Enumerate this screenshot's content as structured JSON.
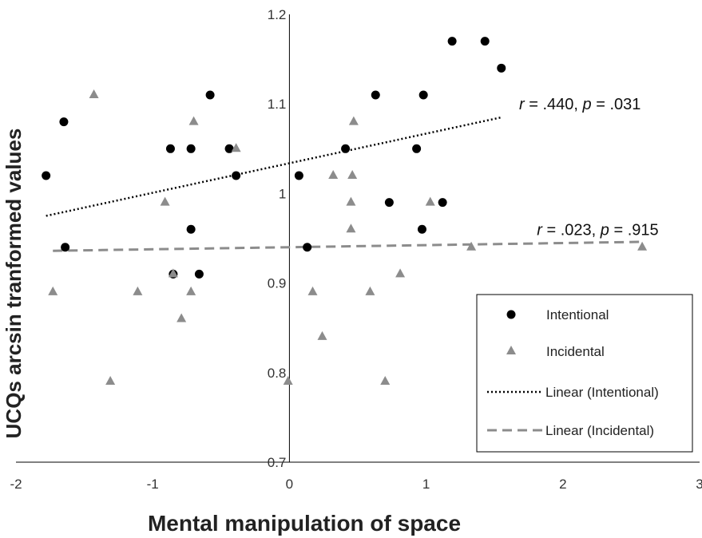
{
  "chart_data": {
    "type": "scatter",
    "xlabel": "Mental manipulation of space",
    "ylabel": "UCQs arcsin tranformed values",
    "xlim": [
      -2,
      3
    ],
    "ylim": [
      0.7,
      1.2
    ],
    "x_ticks": [
      -2,
      -1,
      0,
      1,
      2,
      3
    ],
    "y_ticks": [
      0.7,
      0.8,
      0.9,
      1,
      1.1,
      1.2
    ],
    "x_tick_labels": [
      "-2",
      "-1",
      "0",
      "1",
      "2",
      "3"
    ],
    "y_tick_labels": [
      "0.7",
      "0.8",
      "0.9",
      "1",
      "1.1",
      "1.2"
    ],
    "grid": false,
    "legend_position": "bottom-right",
    "series": [
      {
        "name": "Intentional",
        "marker": "circle",
        "color": "#000000",
        "points": [
          [
            -1.78,
            1.02
          ],
          [
            -1.65,
            1.08
          ],
          [
            -1.64,
            0.94
          ],
          [
            -0.87,
            1.05
          ],
          [
            -0.85,
            0.91
          ],
          [
            -0.72,
            1.05
          ],
          [
            -0.72,
            0.96
          ],
          [
            -0.66,
            0.91
          ],
          [
            -0.58,
            1.11
          ],
          [
            -0.44,
            1.05
          ],
          [
            -0.39,
            1.02
          ],
          [
            0.07,
            1.02
          ],
          [
            0.13,
            0.94
          ],
          [
            0.41,
            1.05
          ],
          [
            0.63,
            1.11
          ],
          [
            0.73,
            0.99
          ],
          [
            0.93,
            1.05
          ],
          [
            0.97,
            0.96
          ],
          [
            0.98,
            1.11
          ],
          [
            1.12,
            0.99
          ],
          [
            1.19,
            1.17
          ],
          [
            1.43,
            1.17
          ],
          [
            1.55,
            1.14
          ]
        ]
      },
      {
        "name": "Incidental",
        "marker": "triangle",
        "color": "#8c8c8c",
        "points": [
          [
            -1.73,
            0.89
          ],
          [
            -1.43,
            1.11
          ],
          [
            -1.31,
            0.79
          ],
          [
            -1.11,
            0.89
          ],
          [
            -0.91,
            0.99
          ],
          [
            -0.85,
            0.91
          ],
          [
            -0.79,
            0.86
          ],
          [
            -0.72,
            0.89
          ],
          [
            -0.7,
            1.08
          ],
          [
            -0.39,
            1.05
          ],
          [
            -0.01,
            0.79
          ],
          [
            0.17,
            0.89
          ],
          [
            0.24,
            0.84
          ],
          [
            0.32,
            1.02
          ],
          [
            0.45,
            0.99
          ],
          [
            0.45,
            0.96
          ],
          [
            0.46,
            1.02
          ],
          [
            0.47,
            1.08
          ],
          [
            0.59,
            0.89
          ],
          [
            0.7,
            0.79
          ],
          [
            0.81,
            0.91
          ],
          [
            1.03,
            0.99
          ],
          [
            1.33,
            0.94
          ],
          [
            2.58,
            0.94
          ]
        ]
      },
      {
        "name": "Linear (Intentional)",
        "type": "trendline",
        "style": "dotted",
        "color": "#000000",
        "x": [
          -1.78,
          1.55
        ],
        "y": [
          0.975,
          1.085
        ]
      },
      {
        "name": "Linear (Incidental)",
        "type": "trendline",
        "style": "dashed",
        "color": "#8c8c8c",
        "x": [
          -1.73,
          2.58
        ],
        "y": [
          0.936,
          0.946
        ]
      }
    ],
    "annotations": [
      {
        "r_label": "r",
        "r_value": " = .440, ",
        "p_label": "p",
        "p_value": " = .031",
        "x": 1.68,
        "y": 1.1
      },
      {
        "r_label": "r",
        "r_value": " = .023, ",
        "p_label": "p",
        "p_value": " = .915",
        "x": 1.81,
        "y": 0.96
      }
    ]
  }
}
